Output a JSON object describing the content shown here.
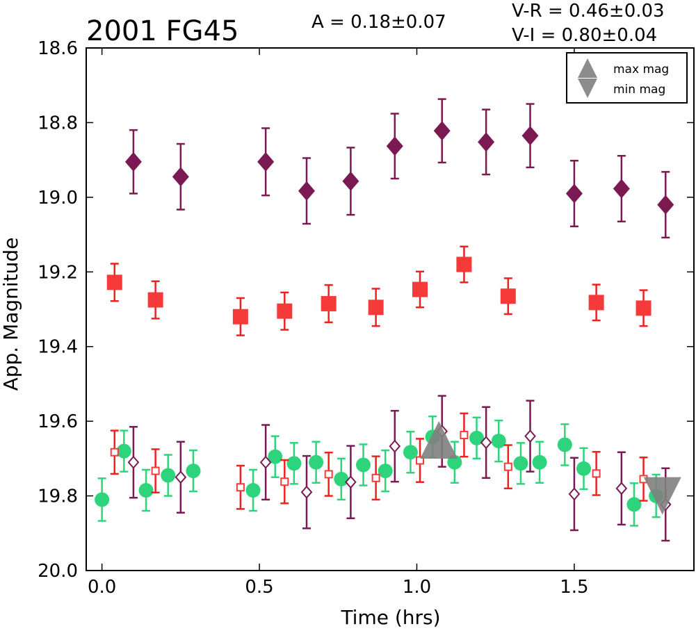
{
  "chart_data": {
    "type": "scatter",
    "title": "2001 FG45",
    "annotations": {
      "amplitude": "A  = 0.18±0.07",
      "vr": "V-R = 0.46±0.03",
      "vi": "V-I  = 0.80±0.04"
    },
    "xlabel": "Time (hrs)",
    "ylabel": "App. Magnitude",
    "xlim": [
      -0.05,
      1.88
    ],
    "ylim": [
      20.0,
      18.6
    ],
    "y_inverted": true,
    "grid": false,
    "xticks": [
      "0.0",
      "0.5",
      "1.0",
      "1.5"
    ],
    "xtick_values": [
      0.0,
      0.5,
      1.0,
      1.5
    ],
    "yticks": [
      "18.6",
      "18.8",
      "19.0",
      "19.2",
      "19.4",
      "19.6",
      "19.8",
      "20.0"
    ],
    "ytick_values": [
      18.6,
      18.8,
      19.0,
      19.2,
      19.4,
      19.6,
      19.8,
      20.0
    ],
    "legend": {
      "placement": "top-right",
      "entries": [
        {
          "label": "max mag",
          "marker": "triangle-up",
          "color": "#808080"
        },
        {
          "label": "min mag",
          "marker": "triangle-down",
          "color": "#808080"
        }
      ]
    },
    "series": [
      {
        "marker": "diamond-filled",
        "color": "#7b1a52",
        "errcolor": "#7b1a52",
        "points": [
          {
            "x": 0.1,
            "y": 18.905,
            "err": 0.085
          },
          {
            "x": 0.25,
            "y": 18.945,
            "err": 0.088
          },
          {
            "x": 0.52,
            "y": 18.905,
            "err": 0.09
          },
          {
            "x": 0.65,
            "y": 18.983,
            "err": 0.088
          },
          {
            "x": 0.79,
            "y": 18.957,
            "err": 0.09
          },
          {
            "x": 0.93,
            "y": 18.863,
            "err": 0.087
          },
          {
            "x": 1.08,
            "y": 18.822,
            "err": 0.085
          },
          {
            "x": 1.22,
            "y": 18.852,
            "err": 0.087
          },
          {
            "x": 1.36,
            "y": 18.835,
            "err": 0.085
          },
          {
            "x": 1.5,
            "y": 18.99,
            "err": 0.088
          },
          {
            "x": 1.65,
            "y": 18.977,
            "err": 0.088
          },
          {
            "x": 1.79,
            "y": 19.02,
            "err": 0.088
          }
        ]
      },
      {
        "marker": "square-filled",
        "color": "#f63a3a",
        "errcolor": "#ee2020",
        "points": [
          {
            "x": 0.04,
            "y": 19.228,
            "err": 0.05
          },
          {
            "x": 0.17,
            "y": 19.275,
            "err": 0.05
          },
          {
            "x": 0.44,
            "y": 19.32,
            "err": 0.05
          },
          {
            "x": 0.58,
            "y": 19.305,
            "err": 0.05
          },
          {
            "x": 0.72,
            "y": 19.285,
            "err": 0.05
          },
          {
            "x": 0.87,
            "y": 19.295,
            "err": 0.05
          },
          {
            "x": 1.01,
            "y": 19.247,
            "err": 0.048
          },
          {
            "x": 1.15,
            "y": 19.18,
            "err": 0.048
          },
          {
            "x": 1.29,
            "y": 19.265,
            "err": 0.048
          },
          {
            "x": 1.57,
            "y": 19.282,
            "err": 0.048
          },
          {
            "x": 1.72,
            "y": 19.297,
            "err": 0.048
          }
        ]
      },
      {
        "marker": "circle-filled",
        "color": "#2ed47c",
        "errcolor": "#2ed47c",
        "points": [
          {
            "x": 0.0,
            "y": 19.81,
            "err": 0.057
          },
          {
            "x": 0.07,
            "y": 19.68,
            "err": 0.055
          },
          {
            "x": 0.14,
            "y": 19.785,
            "err": 0.055
          },
          {
            "x": 0.21,
            "y": 19.745,
            "err": 0.055
          },
          {
            "x": 0.29,
            "y": 19.733,
            "err": 0.055
          },
          {
            "x": 0.48,
            "y": 19.785,
            "err": 0.055
          },
          {
            "x": 0.55,
            "y": 19.695,
            "err": 0.055
          },
          {
            "x": 0.61,
            "y": 19.713,
            "err": 0.055
          },
          {
            "x": 0.68,
            "y": 19.71,
            "err": 0.055
          },
          {
            "x": 0.76,
            "y": 19.755,
            "err": 0.055
          },
          {
            "x": 0.83,
            "y": 19.717,
            "err": 0.055
          },
          {
            "x": 0.9,
            "y": 19.733,
            "err": 0.055
          },
          {
            "x": 0.98,
            "y": 19.683,
            "err": 0.055
          },
          {
            "x": 1.05,
            "y": 19.642,
            "err": 0.055
          },
          {
            "x": 1.12,
            "y": 19.71,
            "err": 0.055
          },
          {
            "x": 1.19,
            "y": 19.645,
            "err": 0.055
          },
          {
            "x": 1.26,
            "y": 19.653,
            "err": 0.055
          },
          {
            "x": 1.33,
            "y": 19.713,
            "err": 0.055
          },
          {
            "x": 1.39,
            "y": 19.71,
            "err": 0.055
          },
          {
            "x": 1.47,
            "y": 19.663,
            "err": 0.055
          },
          {
            "x": 1.53,
            "y": 19.727,
            "err": 0.055
          },
          {
            "x": 1.69,
            "y": 19.823,
            "err": 0.057
          },
          {
            "x": 1.76,
            "y": 19.8,
            "err": 0.057
          }
        ]
      },
      {
        "marker": "square-open",
        "color": "#f63a3a",
        "errcolor": "#ee2020",
        "points": [
          {
            "x": 0.04,
            "y": 19.683,
            "err": 0.058
          },
          {
            "x": 0.17,
            "y": 19.733,
            "err": 0.058
          },
          {
            "x": 0.44,
            "y": 19.777,
            "err": 0.058
          },
          {
            "x": 0.58,
            "y": 19.762,
            "err": 0.058
          },
          {
            "x": 0.72,
            "y": 19.742,
            "err": 0.058
          },
          {
            "x": 0.87,
            "y": 19.752,
            "err": 0.058
          },
          {
            "x": 1.01,
            "y": 19.705,
            "err": 0.058
          },
          {
            "x": 1.15,
            "y": 19.637,
            "err": 0.058
          },
          {
            "x": 1.29,
            "y": 19.722,
            "err": 0.058
          },
          {
            "x": 1.57,
            "y": 19.74,
            "err": 0.058
          },
          {
            "x": 1.72,
            "y": 19.755,
            "err": 0.058
          }
        ]
      },
      {
        "marker": "diamond-open",
        "color": "#7b1a52",
        "errcolor": "#7b1a52",
        "points": [
          {
            "x": 0.1,
            "y": 19.71,
            "err": 0.095
          },
          {
            "x": 0.25,
            "y": 19.75,
            "err": 0.095
          },
          {
            "x": 0.52,
            "y": 19.71,
            "err": 0.1
          },
          {
            "x": 0.65,
            "y": 19.79,
            "err": 0.097
          },
          {
            "x": 0.79,
            "y": 19.763,
            "err": 0.097
          },
          {
            "x": 0.93,
            "y": 19.667,
            "err": 0.095
          },
          {
            "x": 1.08,
            "y": 19.627,
            "err": 0.095
          },
          {
            "x": 1.22,
            "y": 19.657,
            "err": 0.095
          },
          {
            "x": 1.36,
            "y": 19.64,
            "err": 0.095
          },
          {
            "x": 1.5,
            "y": 19.795,
            "err": 0.097
          },
          {
            "x": 1.65,
            "y": 19.78,
            "err": 0.097
          },
          {
            "x": 1.79,
            "y": 19.823,
            "err": 0.097
          }
        ]
      },
      {
        "marker": "triangle-up",
        "color": "#808080",
        "label": "max mag",
        "points": [
          {
            "x": 1.07,
            "y": 19.65
          }
        ]
      },
      {
        "marker": "triangle-down",
        "color": "#808080",
        "label": "min mag",
        "points": [
          {
            "x": 1.78,
            "y": 19.8
          }
        ]
      }
    ]
  }
}
